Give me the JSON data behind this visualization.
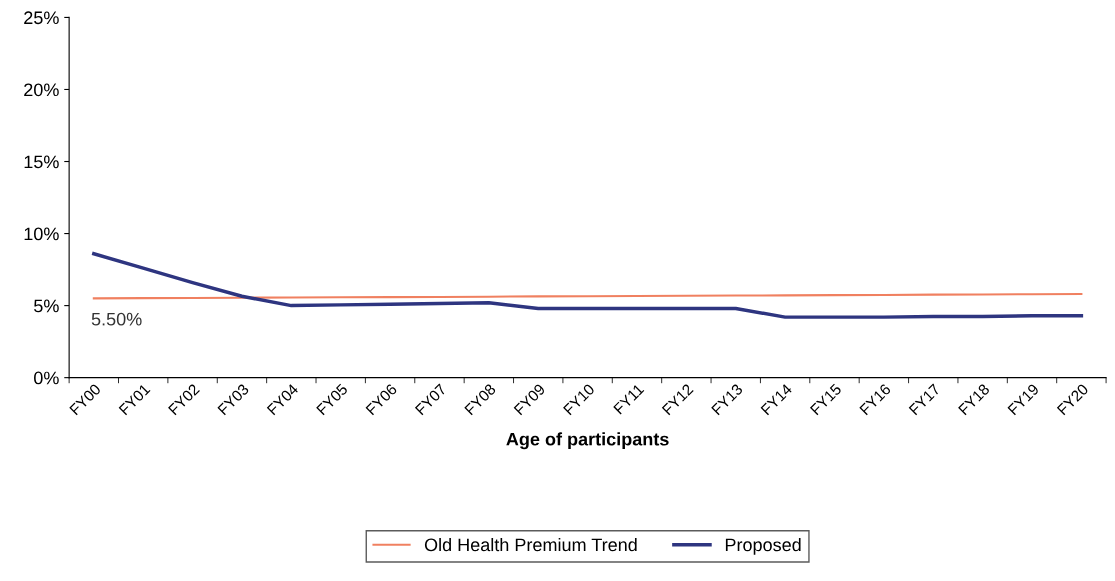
{
  "chart_data": {
    "type": "line",
    "xlabel": "Age of participants",
    "categories": [
      "FY00",
      "FY01",
      "FY02",
      "FY03",
      "FY04",
      "FY05",
      "FY06",
      "FY07",
      "FY08",
      "FY09",
      "FY10",
      "FY11",
      "FY12",
      "FY13",
      "FY14",
      "FY15",
      "FY16",
      "FY17",
      "FY18",
      "FY19",
      "FY20"
    ],
    "series": [
      {
        "name": "Old Health Premium Trend",
        "color": "#f08060",
        "values": [
          5.5,
          5.52,
          5.53,
          5.55,
          5.56,
          5.58,
          5.59,
          5.6,
          5.62,
          5.64,
          5.65,
          5.67,
          5.68,
          5.7,
          5.71,
          5.73,
          5.74,
          5.76,
          5.77,
          5.79,
          5.8
        ],
        "value_labels": [
          "5.50%",
          null,
          null,
          null,
          null,
          null,
          null,
          null,
          null,
          null,
          null,
          null,
          null,
          null,
          null,
          null,
          null,
          null,
          null,
          null,
          null
        ]
      },
      {
        "name": "Proposed",
        "color": "#2e3580",
        "values": [
          8.6,
          7.6,
          6.6,
          5.65,
          5.0,
          5.05,
          5.1,
          5.15,
          5.2,
          4.8,
          4.8,
          4.8,
          4.8,
          4.8,
          4.2,
          4.2,
          4.2,
          4.25,
          4.25,
          4.3,
          4.3
        ]
      }
    ],
    "ylim": [
      0,
      25
    ],
    "yticks": [
      {
        "value": 0,
        "label": "0%"
      },
      {
        "value": 5,
        "label": "5%"
      },
      {
        "value": 10,
        "label": "10%"
      },
      {
        "value": 15,
        "label": "15%"
      },
      {
        "value": 20,
        "label": "20%"
      },
      {
        "value": 25,
        "label": "25%"
      }
    ],
    "grid": false,
    "legend": "bottom",
    "marker": "none",
    "line_style": "solid"
  }
}
